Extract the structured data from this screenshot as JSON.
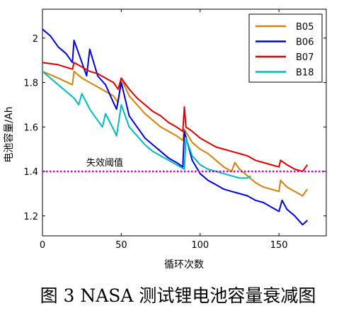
{
  "caption": "图 3 NASA 测试锂电池容量衰减图",
  "chart_data": {
    "type": "line",
    "title": "",
    "xlabel": "循环次数",
    "ylabel": "电池容量/Ah",
    "xlim": [
      0,
      180
    ],
    "ylim": [
      1.11,
      2.13
    ],
    "xticks": [
      "0",
      "50",
      "100",
      "150"
    ],
    "yticks": [
      "1.2",
      "1.4",
      "1.6",
      "1.8",
      "2"
    ],
    "grid": false,
    "legend_position": "top-right",
    "threshold": {
      "value": 1.4,
      "label": "失效阈值",
      "color": "#CC00CC"
    },
    "series": [
      {
        "name": "B05",
        "color": "#D4820A",
        "x": [
          0,
          10,
          19,
          20,
          25,
          30,
          35,
          40,
          45,
          48,
          50,
          55,
          60,
          65,
          70,
          75,
          80,
          85,
          89,
          90,
          95,
          100,
          105,
          110,
          115,
          120,
          122,
          125,
          130,
          135,
          140,
          145,
          150,
          151,
          155,
          160,
          165,
          168
        ],
        "y": [
          1.85,
          1.82,
          1.79,
          1.85,
          1.82,
          1.8,
          1.78,
          1.76,
          1.74,
          1.71,
          1.82,
          1.74,
          1.7,
          1.66,
          1.63,
          1.6,
          1.58,
          1.56,
          1.54,
          1.59,
          1.53,
          1.5,
          1.48,
          1.45,
          1.42,
          1.4,
          1.44,
          1.41,
          1.38,
          1.35,
          1.33,
          1.32,
          1.31,
          1.36,
          1.33,
          1.31,
          1.29,
          1.32
        ]
      },
      {
        "name": "B06",
        "color": "#0000DD",
        "x": [
          0,
          5,
          10,
          15,
          19,
          20,
          25,
          28,
          30,
          35,
          40,
          45,
          47,
          50,
          55,
          60,
          65,
          70,
          75,
          80,
          85,
          89,
          90,
          95,
          100,
          105,
          110,
          115,
          120,
          125,
          130,
          135,
          140,
          145,
          150,
          152,
          155,
          160,
          165,
          168
        ],
        "y": [
          2.04,
          2.01,
          1.96,
          1.93,
          1.89,
          1.99,
          1.89,
          1.83,
          1.95,
          1.83,
          1.79,
          1.71,
          1.68,
          1.8,
          1.65,
          1.6,
          1.55,
          1.52,
          1.49,
          1.46,
          1.44,
          1.42,
          1.58,
          1.45,
          1.39,
          1.36,
          1.34,
          1.32,
          1.31,
          1.3,
          1.29,
          1.27,
          1.26,
          1.24,
          1.22,
          1.27,
          1.23,
          1.2,
          1.16,
          1.18
        ]
      },
      {
        "name": "B07",
        "color": "#DD0000",
        "x": [
          0,
          10,
          19,
          20,
          25,
          30,
          35,
          40,
          45,
          48,
          50,
          55,
          60,
          65,
          70,
          75,
          80,
          85,
          89,
          90,
          91,
          95,
          100,
          105,
          110,
          115,
          120,
          125,
          130,
          135,
          140,
          145,
          150,
          151,
          155,
          160,
          165,
          168
        ],
        "y": [
          1.89,
          1.88,
          1.86,
          1.89,
          1.87,
          1.85,
          1.84,
          1.82,
          1.8,
          1.77,
          1.82,
          1.77,
          1.73,
          1.7,
          1.67,
          1.65,
          1.62,
          1.6,
          1.58,
          1.69,
          1.6,
          1.58,
          1.55,
          1.53,
          1.51,
          1.5,
          1.49,
          1.48,
          1.47,
          1.45,
          1.44,
          1.43,
          1.42,
          1.45,
          1.43,
          1.41,
          1.4,
          1.43
        ]
      },
      {
        "name": "B18",
        "color": "#00BBBB",
        "x": [
          0,
          5,
          10,
          15,
          20,
          23,
          25,
          30,
          35,
          38,
          40,
          45,
          47,
          50,
          55,
          60,
          65,
          70,
          75,
          80,
          85,
          90,
          91,
          95,
          100,
          105,
          110,
          115,
          120,
          125,
          130,
          132
        ],
        "y": [
          1.85,
          1.82,
          1.79,
          1.76,
          1.73,
          1.7,
          1.75,
          1.68,
          1.63,
          1.6,
          1.66,
          1.59,
          1.56,
          1.7,
          1.6,
          1.56,
          1.52,
          1.49,
          1.47,
          1.45,
          1.43,
          1.41,
          1.55,
          1.47,
          1.43,
          1.41,
          1.4,
          1.39,
          1.38,
          1.37,
          1.37,
          1.38
        ]
      }
    ]
  }
}
